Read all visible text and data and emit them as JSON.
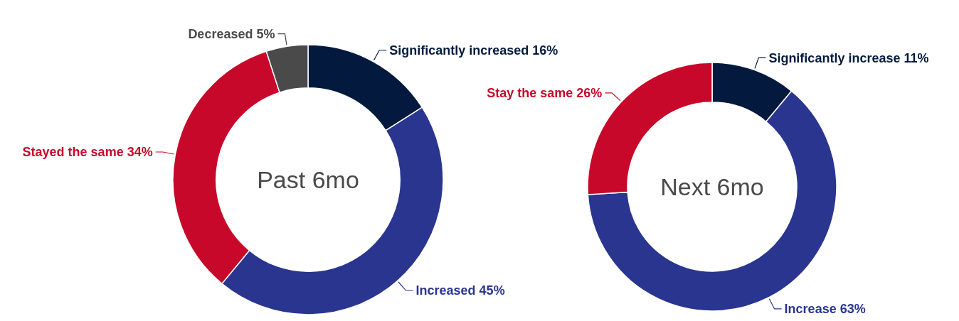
{
  "chart_data": [
    {
      "type": "donut",
      "title": "Past 6mo",
      "categories": [
        "Significantly increased",
        "Increased",
        "Stayed the same",
        "Decreased"
      ],
      "values": [
        16,
        45,
        34,
        5
      ],
      "value_labels": [
        "16%",
        "45%",
        "34%",
        "5%"
      ],
      "colors": [
        "#031a3e",
        "#2a3590",
        "#c8082a",
        "#4a4a4a"
      ]
    },
    {
      "type": "donut",
      "title": "Next 6mo",
      "categories": [
        "Significantly increase",
        "Increase",
        "Stay the same"
      ],
      "values": [
        11,
        63,
        26
      ],
      "value_labels": [
        "11%",
        "63%",
        "26%"
      ],
      "colors": [
        "#031a3e",
        "#2a3590",
        "#c8082a"
      ]
    }
  ]
}
